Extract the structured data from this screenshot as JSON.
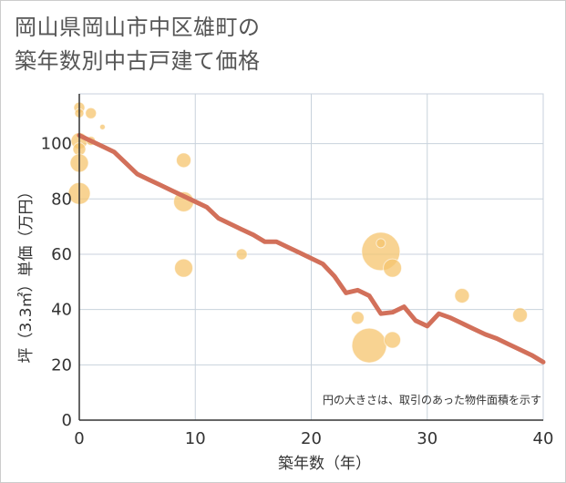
{
  "title": {
    "line1": "岡山県岡山市中区雄町の",
    "line2": "築年数別中古戸建て価格"
  },
  "chart_data": {
    "type": "scatter+line",
    "xlabel": "築年数（年）",
    "ylabel": "坪（3.3㎡）単価（万円）",
    "xlim": [
      0,
      40
    ],
    "ylim": [
      0,
      118
    ],
    "xticks": [
      0,
      10,
      20,
      30,
      40
    ],
    "yticks": [
      0,
      20,
      40,
      60,
      80,
      100
    ],
    "grid": true,
    "note": "円の大きさは、取引のあった物件面積を示す",
    "colors": {
      "bubble": "#f5c46e",
      "trend": "#d2705a",
      "grid": "#c8d2dc",
      "axis": "#333333"
    },
    "scatter": [
      {
        "x": 0,
        "y": 113,
        "size": 6
      },
      {
        "x": 0,
        "y": 111,
        "size": 5
      },
      {
        "x": 1,
        "y": 111,
        "size": 6
      },
      {
        "x": 2,
        "y": 106,
        "size": 3
      },
      {
        "x": 0,
        "y": 101,
        "size": 9
      },
      {
        "x": 1,
        "y": 101,
        "size": 5
      },
      {
        "x": 0,
        "y": 98,
        "size": 7
      },
      {
        "x": 0,
        "y": 93,
        "size": 10
      },
      {
        "x": 0,
        "y": 82,
        "size": 12
      },
      {
        "x": 9,
        "y": 94,
        "size": 8
      },
      {
        "x": 9,
        "y": 79,
        "size": 11
      },
      {
        "x": 9,
        "y": 55,
        "size": 10
      },
      {
        "x": 14,
        "y": 60,
        "size": 6
      },
      {
        "x": 24,
        "y": 37,
        "size": 7
      },
      {
        "x": 25,
        "y": 27,
        "size": 19
      },
      {
        "x": 26,
        "y": 61,
        "size": 21
      },
      {
        "x": 26,
        "y": 64,
        "size": 5
      },
      {
        "x": 27,
        "y": 55,
        "size": 10
      },
      {
        "x": 27,
        "y": 29,
        "size": 9
      },
      {
        "x": 33,
        "y": 45,
        "size": 8
      },
      {
        "x": 38,
        "y": 38,
        "size": 8
      }
    ],
    "trend": {
      "x": [
        0,
        1,
        2,
        3,
        4,
        5,
        6,
        7,
        8,
        9,
        10,
        11,
        12,
        13,
        14,
        15,
        16,
        17,
        18,
        19,
        20,
        21,
        22,
        23,
        24,
        25,
        26,
        27,
        28,
        29,
        30,
        31,
        32,
        33,
        34,
        35,
        36,
        37,
        38,
        39,
        40
      ],
      "y": [
        103,
        101,
        99,
        97,
        93,
        89,
        87,
        85,
        83,
        81,
        79,
        77,
        73,
        71,
        69,
        67,
        64.5,
        64.5,
        62.5,
        60.5,
        58.5,
        56.5,
        52,
        46,
        47,
        45,
        38.5,
        39,
        41,
        36,
        34,
        38.5,
        37,
        35,
        33,
        31,
        29.5,
        27.5,
        25.5,
        23.5,
        21
      ]
    }
  }
}
